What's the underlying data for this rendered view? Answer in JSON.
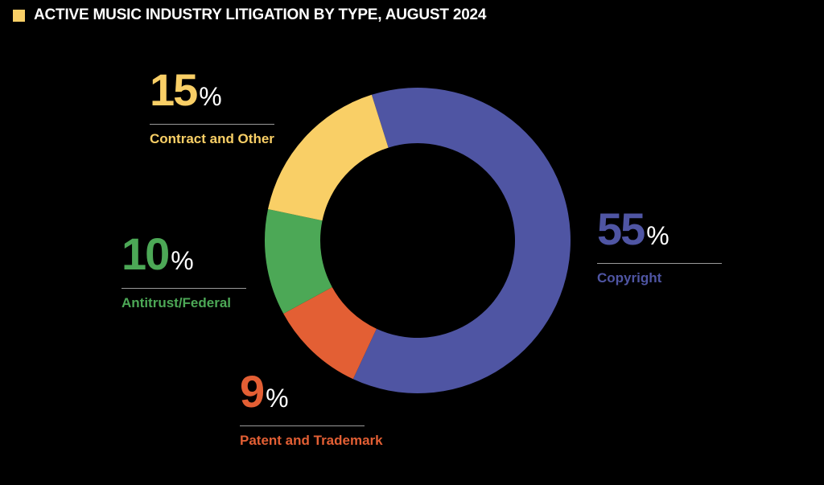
{
  "title": "ACTIVE MUSIC INDUSTRY LITIGATION BY TYPE, AUGUST 2024",
  "chart_data": {
    "type": "pie",
    "variant": "donut",
    "title": "ACTIVE MUSIC INDUSTRY LITIGATION BY TYPE, AUGUST 2024",
    "slices": [
      {
        "label": "Copyright",
        "value": 55,
        "display": "55",
        "color": "#4F55A3"
      },
      {
        "label": "Patent and Trademark",
        "value": 9,
        "display": "9",
        "color": "#E35F34"
      },
      {
        "label": "Antitrust/Federal",
        "value": 10,
        "display": "10",
        "color": "#4CA856"
      },
      {
        "label": "Contract and Other",
        "value": 15,
        "display": "15",
        "color": "#F9CF66"
      }
    ],
    "unit": "%",
    "title_swatch_color": "#F9CF66"
  }
}
